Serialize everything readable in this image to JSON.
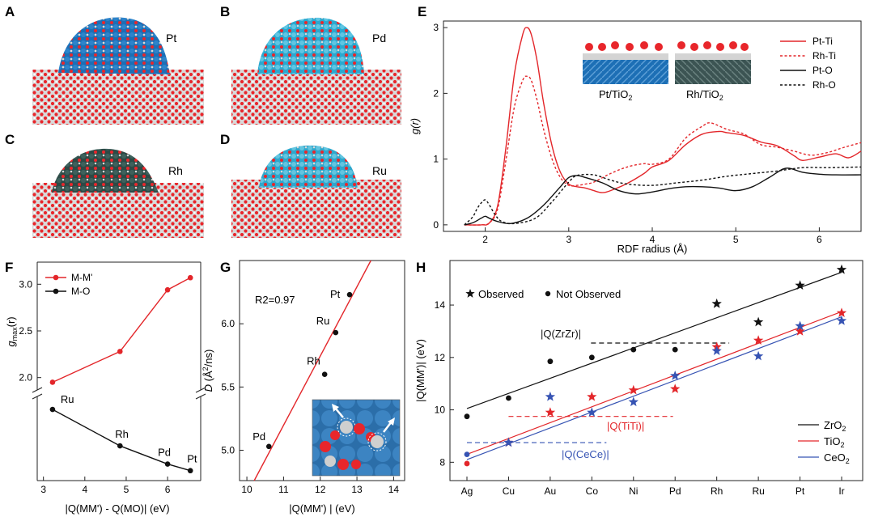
{
  "figure": {
    "panel_letters": [
      "A",
      "B",
      "C",
      "D",
      "E",
      "F",
      "G",
      "H"
    ],
    "render_labels": {
      "A": "Pt",
      "B": "Pd",
      "C": "Rh",
      "D": "Ru"
    },
    "colors": {
      "red": "#e3262a",
      "black": "#111111",
      "blue": "#3653b3",
      "oxygen": "#e8262b",
      "titanium": "#d9d9d9",
      "pt": "#1d6fb5",
      "pd": "#2ba8cf",
      "rh": "#2d4a46",
      "ru": "#2fa7cc"
    },
    "e_insets": [
      "Pt/TiO",
      "Rh/TiO"
    ],
    "e_insets_subscript": "2",
    "f_y_label_main": "g",
    "f_y_label_sub": "max",
    "f_y_label_tail": "(r)"
  },
  "chart_data": [
    {
      "panel": "E",
      "type": "line",
      "xlabel": "RDF radius (Å)",
      "ylabel": "g(r)",
      "xlim": [
        1.5,
        6.5
      ],
      "ylim": [
        -0.1,
        3.1
      ],
      "x_ticks": [
        2,
        3,
        4,
        5,
        6
      ],
      "y_ticks": [
        0,
        1,
        2,
        3
      ],
      "legend_position": "top-right",
      "series": [
        {
          "name": "Pt-Ti",
          "color": "#e3262a",
          "dash": false,
          "x": [
            1.75,
            1.95,
            2.05,
            2.15,
            2.25,
            2.35,
            2.45,
            2.5,
            2.55,
            2.62,
            2.7,
            2.8,
            2.9,
            3.0,
            3.1,
            3.2,
            3.3,
            3.4,
            3.5,
            3.7,
            3.9,
            4.0,
            4.2,
            4.4,
            4.6,
            4.8,
            4.9,
            5.1,
            5.3,
            5.5,
            5.7,
            5.8,
            6.0,
            6.2,
            6.35,
            6.5
          ],
          "y": [
            0.0,
            0.0,
            0.03,
            0.3,
            1.2,
            2.3,
            2.9,
            3.0,
            2.9,
            2.5,
            1.85,
            1.2,
            0.8,
            0.62,
            0.58,
            0.56,
            0.52,
            0.49,
            0.52,
            0.63,
            0.78,
            0.88,
            0.98,
            1.22,
            1.38,
            1.42,
            1.4,
            1.36,
            1.26,
            1.2,
            1.05,
            0.98,
            1.03,
            1.08,
            1.02,
            1.12
          ]
        },
        {
          "name": "Rh-Ti",
          "color": "#e3262a",
          "dash": true,
          "x": [
            1.75,
            1.95,
            2.05,
            2.15,
            2.25,
            2.35,
            2.45,
            2.5,
            2.55,
            2.62,
            2.7,
            2.8,
            2.9,
            3.0,
            3.1,
            3.2,
            3.3,
            3.5,
            3.7,
            3.9,
            4.0,
            4.2,
            4.4,
            4.6,
            4.7,
            4.9,
            5.1,
            5.3,
            5.5,
            5.7,
            5.9,
            6.1,
            6.3,
            6.5
          ],
          "y": [
            0.0,
            0.0,
            0.03,
            0.25,
            1.0,
            1.8,
            2.2,
            2.26,
            2.2,
            1.9,
            1.45,
            1.0,
            0.72,
            0.6,
            0.6,
            0.62,
            0.65,
            0.78,
            0.88,
            0.93,
            0.92,
            1.0,
            1.32,
            1.5,
            1.55,
            1.45,
            1.38,
            1.22,
            1.18,
            1.12,
            1.06,
            1.1,
            1.18,
            1.25
          ]
        },
        {
          "name": "Pt-O",
          "color": "#111111",
          "dash": false,
          "x": [
            1.75,
            1.85,
            1.95,
            2.0,
            2.05,
            2.15,
            2.3,
            2.5,
            2.7,
            2.9,
            3.0,
            3.1,
            3.2,
            3.4,
            3.6,
            3.8,
            4.0,
            4.2,
            4.4,
            4.6,
            4.8,
            5.0,
            5.2,
            5.4,
            5.6,
            5.8,
            6.0,
            6.2,
            6.5
          ],
          "y": [
            0.0,
            0.03,
            0.1,
            0.13,
            0.1,
            0.05,
            0.02,
            0.1,
            0.3,
            0.58,
            0.72,
            0.75,
            0.72,
            0.64,
            0.52,
            0.47,
            0.5,
            0.55,
            0.58,
            0.58,
            0.56,
            0.52,
            0.58,
            0.72,
            0.86,
            0.8,
            0.77,
            0.76,
            0.76
          ]
        },
        {
          "name": "Rh-O",
          "color": "#111111",
          "dash": true,
          "x": [
            1.75,
            1.85,
            1.9,
            1.95,
            2.0,
            2.05,
            2.12,
            2.2,
            2.35,
            2.6,
            2.8,
            3.0,
            3.1,
            3.3,
            3.5,
            3.7,
            4.0,
            4.3,
            4.6,
            4.9,
            5.2,
            5.5,
            5.8,
            6.1,
            6.5
          ],
          "y": [
            0.0,
            0.12,
            0.24,
            0.33,
            0.38,
            0.3,
            0.15,
            0.05,
            0.02,
            0.1,
            0.35,
            0.65,
            0.75,
            0.76,
            0.68,
            0.62,
            0.6,
            0.64,
            0.68,
            0.74,
            0.78,
            0.82,
            0.87,
            0.87,
            0.88
          ]
        }
      ]
    },
    {
      "panel": "F",
      "type": "line",
      "xlabel": "|Q(MM') - Q(MO)| (eV)",
      "ylabel": "gmax(r)",
      "xlim": [
        2.85,
        6.8
      ],
      "x_ticks": [
        3,
        4,
        5,
        6
      ],
      "upper_ylim": [
        1.85,
        3.15
      ],
      "upper_y_ticks": [
        "2.0",
        "2.5",
        "3.0"
      ],
      "legend_position": "top-left",
      "point_labels": [
        "Ru",
        "Rh",
        "Pd",
        "Pt"
      ],
      "series": [
        {
          "name": "M-M'",
          "color": "#e3262a",
          "x": [
            3.22,
            4.85,
            6.0,
            6.55
          ],
          "y": [
            1.95,
            2.28,
            2.94,
            3.07
          ]
        },
        {
          "name": "M-O",
          "color": "#111111",
          "x": [
            3.22,
            4.85,
            6.0,
            6.55
          ],
          "y": [
            0.86,
            0.42,
            0.2,
            0.12
          ]
        }
      ]
    },
    {
      "panel": "G",
      "type": "scatter",
      "xlabel": "|Q(MM') | (eV)",
      "ylabel": "D (Å2/ns)",
      "xlim": [
        9.8,
        14.3
      ],
      "ylim": [
        4.76,
        6.5
      ],
      "x_ticks": [
        10,
        11,
        12,
        13,
        14
      ],
      "y_ticks": [
        "5.0",
        "5.5",
        "6.0"
      ],
      "annotation": "R2=0.97",
      "fit_line": {
        "x": [
          10.2,
          13.38
        ],
        "y": [
          4.76,
          6.5
        ]
      },
      "point_labels": [
        "Pd",
        "Rh",
        "Ru",
        "Pt"
      ],
      "x": [
        10.6,
        12.12,
        12.42,
        12.8
      ],
      "y": [
        5.03,
        5.6,
        5.93,
        6.23
      ]
    },
    {
      "panel": "H",
      "type": "scatter",
      "xlabel": "",
      "ylabel": "|Q(MM')| (eV)",
      "categories": [
        "Ag",
        "Cu",
        "Au",
        "Co",
        "Ni",
        "Pd",
        "Rh",
        "Ru",
        "Pt",
        "Ir"
      ],
      "ylim": [
        7.3,
        15.7
      ],
      "y_ticks": [
        8,
        10,
        12,
        14
      ],
      "legend_position": "top-left",
      "marker_legend": [
        "Observed",
        "Not Observed"
      ],
      "line_legend": [
        "ZrO2",
        "TiO2",
        "CeO2"
      ],
      "reference_labels": [
        "|Q(ZrZr)|",
        "|Q(TiTi)|",
        "|Q(CeCe)|"
      ],
      "reference_values": [
        12.55,
        9.75,
        8.75
      ],
      "series": [
        {
          "name": "ZrO2",
          "color": "#111111",
          "values": [
            9.75,
            10.45,
            11.85,
            12.0,
            12.3,
            12.3,
            14.05,
            13.35,
            14.75,
            15.35
          ],
          "observed": [
            false,
            false,
            false,
            false,
            false,
            false,
            true,
            true,
            true,
            true
          ],
          "fit": [
            10.05,
            15.25
          ]
        },
        {
          "name": "TiO2",
          "color": "#e3262a",
          "values": [
            7.95,
            8.75,
            9.9,
            10.5,
            10.75,
            10.8,
            12.4,
            12.65,
            13.0,
            13.7
          ],
          "observed": [
            false,
            true,
            true,
            true,
            true,
            true,
            true,
            true,
            true,
            true
          ],
          "fit": [
            8.3,
            13.75
          ]
        },
        {
          "name": "CeO2",
          "color": "#3653b3",
          "values": [
            8.3,
            8.75,
            10.5,
            9.9,
            10.3,
            11.3,
            12.25,
            12.05,
            13.2,
            13.4
          ],
          "observed": [
            false,
            true,
            true,
            true,
            true,
            true,
            true,
            true,
            true,
            true
          ],
          "fit": [
            8.1,
            13.55
          ]
        }
      ]
    }
  ]
}
